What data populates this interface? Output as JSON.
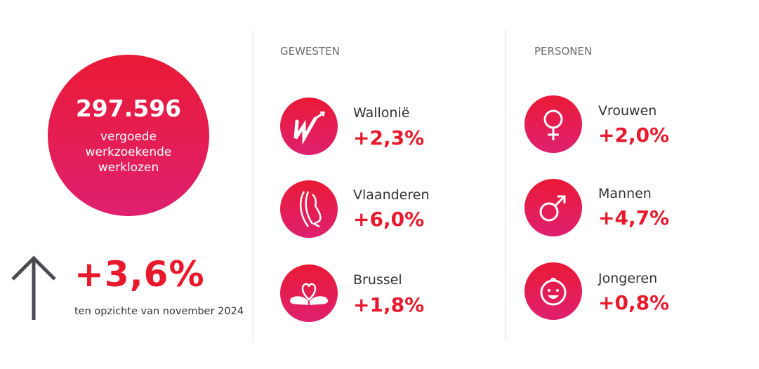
{
  "total": {
    "number": "297.596",
    "label_lines": [
      "vergoede",
      "werkzoekende",
      "werklozen"
    ]
  },
  "change": {
    "value": "+3,6%",
    "caption": "ten opzichte van november 2024",
    "icon": "arrow-up-icon"
  },
  "gewesten": {
    "title": "GEWESTEN",
    "items": [
      {
        "label": "Wallonië",
        "value": "+2,3%",
        "icon": "wallonia-icon"
      },
      {
        "label": "Vlaanderen",
        "value": "+6,0%",
        "icon": "flanders-lion-icon"
      },
      {
        "label": "Brussel",
        "value": "+1,8%",
        "icon": "brussels-heart-icon"
      }
    ]
  },
  "personen": {
    "title": "PERSONEN",
    "items": [
      {
        "label": "Vrouwen",
        "value": "+2,0%",
        "icon": "female-icon"
      },
      {
        "label": "Mannen",
        "value": "+4,7%",
        "icon": "male-icon"
      },
      {
        "label": "Jongeren",
        "value": "+0,8%",
        "icon": "baby-face-icon"
      }
    ]
  },
  "colors": {
    "accent": "#e8192c",
    "gradient_top": "#ea1a35",
    "gradient_bottom": "#df2070",
    "arrow": "#4a4a52"
  }
}
